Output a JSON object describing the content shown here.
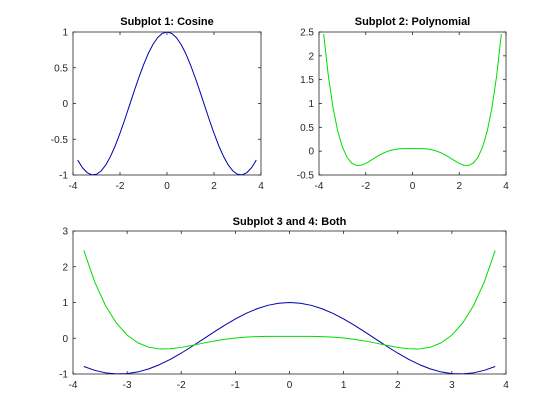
{
  "colors": {
    "blue": "#0000ad",
    "green": "#00dd00",
    "axis": "#262626",
    "background": "#ffffff"
  },
  "chart_data": [
    {
      "type": "line",
      "title": "Subplot 1: Cosine",
      "xlabel": "",
      "ylabel": "",
      "xlim": [
        -4,
        4
      ],
      "ylim": [
        -1,
        1
      ],
      "xticks": [
        -4,
        -2,
        0,
        2,
        4
      ],
      "yticks": [
        -1,
        -0.5,
        0,
        0.5,
        1
      ],
      "xtick_labels": [
        "-4",
        "-2",
        "0",
        "2",
        "4"
      ],
      "ytick_labels": [
        "-1",
        "-0.5",
        "0",
        "0.5",
        "1"
      ],
      "grid": false,
      "x": [
        -3.8,
        -3.6,
        -3.4,
        -3.2,
        -3.0,
        -2.8,
        -2.6,
        -2.4,
        -2.2,
        -2.0,
        -1.8,
        -1.6,
        -1.4,
        -1.2,
        -1.0,
        -0.8,
        -0.6,
        -0.4,
        -0.2,
        0.0,
        0.2,
        0.4,
        0.6,
        0.8,
        1.0,
        1.2,
        1.4,
        1.6,
        1.8,
        2.0,
        2.2,
        2.4,
        2.6,
        2.8,
        3.0,
        3.2,
        3.4,
        3.6,
        3.8
      ],
      "series": [
        {
          "color": "#0000ad",
          "values": [
            -0.791,
            -0.897,
            -0.967,
            -0.998,
            -0.99,
            -0.942,
            -0.857,
            -0.737,
            -0.589,
            -0.416,
            -0.227,
            -0.029,
            0.17,
            0.362,
            0.54,
            0.697,
            0.825,
            0.921,
            0.98,
            1.0,
            0.98,
            0.921,
            0.825,
            0.697,
            0.54,
            0.362,
            0.17,
            -0.029,
            -0.227,
            -0.416,
            -0.589,
            -0.737,
            -0.857,
            -0.942,
            -0.99,
            -0.998,
            -0.967,
            -0.897,
            -0.791
          ]
        }
      ]
    },
    {
      "type": "line",
      "title": "Subplot 2: Polynomial",
      "xlabel": "",
      "ylabel": "",
      "xlim": [
        -4,
        4
      ],
      "ylim": [
        -0.5,
        2.5
      ],
      "xticks": [
        -4,
        -2,
        0,
        2,
        4
      ],
      "yticks": [
        -0.5,
        0,
        0.5,
        1,
        1.5,
        2,
        2.5
      ],
      "xtick_labels": [
        "-4",
        "-2",
        "0",
        "2",
        "4"
      ],
      "ytick_labels": [
        "-0.5",
        "0",
        "0.5",
        "1",
        "1.5",
        "2",
        "2.5"
      ],
      "grid": false,
      "x": [
        -3.8,
        -3.6,
        -3.4,
        -3.2,
        -3.0,
        -2.8,
        -2.6,
        -2.4,
        -2.2,
        -2.0,
        -1.8,
        -1.6,
        -1.4,
        -1.2,
        -1.0,
        -0.8,
        -0.6,
        -0.4,
        -0.2,
        0.0,
        0.2,
        0.4,
        0.6,
        0.8,
        1.0,
        1.2,
        1.4,
        1.6,
        1.8,
        2.0,
        2.2,
        2.4,
        2.6,
        2.8,
        3.0,
        3.2,
        3.4,
        3.6,
        3.8
      ],
      "series": [
        {
          "color": "#00dd00",
          "values": [
            2.456,
            1.578,
            0.913,
            0.426,
            0.088,
            -0.129,
            -0.251,
            -0.299,
            -0.295,
            -0.257,
            -0.2,
            -0.138,
            -0.079,
            -0.03,
            0.007,
            0.032,
            0.047,
            0.053,
            0.054,
            0.054,
            0.054,
            0.053,
            0.047,
            0.032,
            0.007,
            -0.03,
            -0.079,
            -0.138,
            -0.2,
            -0.257,
            -0.295,
            -0.299,
            -0.251,
            -0.129,
            0.088,
            0.426,
            0.913,
            1.578,
            2.456
          ]
        }
      ]
    },
    {
      "type": "line",
      "title": "Subplot 3 and 4: Both",
      "xlabel": "",
      "ylabel": "",
      "xlim": [
        -4,
        4
      ],
      "ylim": [
        -1,
        3
      ],
      "xticks": [
        -4,
        -3,
        -2,
        -1,
        0,
        1,
        2,
        3,
        4
      ],
      "yticks": [
        -1,
        0,
        1,
        2,
        3
      ],
      "xtick_labels": [
        "-4",
        "-3",
        "-2",
        "-1",
        "0",
        "1",
        "2",
        "3",
        "4"
      ],
      "ytick_labels": [
        "-1",
        "0",
        "1",
        "2",
        "3"
      ],
      "grid": false,
      "x": [
        -3.8,
        -3.6,
        -3.4,
        -3.2,
        -3.0,
        -2.8,
        -2.6,
        -2.4,
        -2.2,
        -2.0,
        -1.8,
        -1.6,
        -1.4,
        -1.2,
        -1.0,
        -0.8,
        -0.6,
        -0.4,
        -0.2,
        0.0,
        0.2,
        0.4,
        0.6,
        0.8,
        1.0,
        1.2,
        1.4,
        1.6,
        1.8,
        2.0,
        2.2,
        2.4,
        2.6,
        2.8,
        3.0,
        3.2,
        3.4,
        3.6,
        3.8
      ],
      "series": [
        {
          "color": "#0000ad",
          "values": [
            -0.791,
            -0.897,
            -0.967,
            -0.998,
            -0.99,
            -0.942,
            -0.857,
            -0.737,
            -0.589,
            -0.416,
            -0.227,
            -0.029,
            0.17,
            0.362,
            0.54,
            0.697,
            0.825,
            0.921,
            0.98,
            1.0,
            0.98,
            0.921,
            0.825,
            0.697,
            0.54,
            0.362,
            0.17,
            -0.029,
            -0.227,
            -0.416,
            -0.589,
            -0.737,
            -0.857,
            -0.942,
            -0.99,
            -0.998,
            -0.967,
            -0.897,
            -0.791
          ]
        },
        {
          "color": "#00dd00",
          "values": [
            2.456,
            1.578,
            0.913,
            0.426,
            0.088,
            -0.129,
            -0.251,
            -0.299,
            -0.295,
            -0.257,
            -0.2,
            -0.138,
            -0.079,
            -0.03,
            0.007,
            0.032,
            0.047,
            0.053,
            0.054,
            0.054,
            0.054,
            0.053,
            0.047,
            0.032,
            0.007,
            -0.03,
            -0.079,
            -0.138,
            -0.2,
            -0.257,
            -0.295,
            -0.299,
            -0.251,
            -0.129,
            0.088,
            0.426,
            0.913,
            1.578,
            2.456
          ]
        }
      ]
    }
  ]
}
